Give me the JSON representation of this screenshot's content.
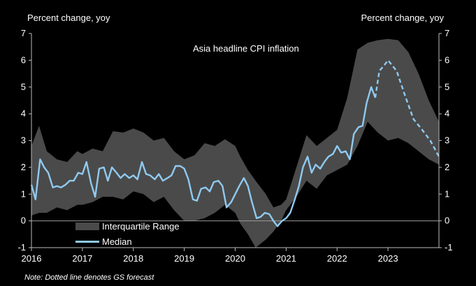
{
  "chart_data": {
    "type": "line",
    "title": "Asia headline CPI inflation",
    "ylabel_left": "Percent change, yoy",
    "ylabel_right": "Percent change, yoy",
    "ylim": [
      -1,
      7
    ],
    "yticks": [
      -1,
      0,
      1,
      2,
      3,
      4,
      5,
      6,
      7
    ],
    "xlim": [
      2016.0,
      2024.0
    ],
    "xticks": [
      {
        "value": 2016,
        "label": "2016"
      },
      {
        "value": 2017,
        "label": "2017"
      },
      {
        "value": 2018,
        "label": "2018"
      },
      {
        "value": 2019,
        "label": "2019"
      },
      {
        "value": 2020,
        "label": "2020"
      },
      {
        "value": 2021,
        "label": "2021"
      },
      {
        "value": 2022,
        "label": "2022"
      },
      {
        "value": 2023,
        "label": "2023"
      }
    ],
    "note": "Note: Dotted line denotes GS forecast",
    "series": [
      {
        "name": "Interquartile Range",
        "kind": "band",
        "color": "#4a4a4a",
        "x": [
          2016.0,
          2016.15,
          2016.3,
          2016.5,
          2016.7,
          2016.9,
          2017.0,
          2017.2,
          2017.4,
          2017.6,
          2017.8,
          2018.0,
          2018.2,
          2018.4,
          2018.6,
          2018.8,
          2019.0,
          2019.2,
          2019.4,
          2019.6,
          2019.8,
          2020.0,
          2020.1,
          2020.25,
          2020.4,
          2020.6,
          2020.75,
          2020.9,
          2021.0,
          2021.2,
          2021.4,
          2021.6,
          2021.8,
          2022.0,
          2022.2,
          2022.4,
          2022.6,
          2022.8,
          2023.0,
          2023.2,
          2023.4,
          2023.6,
          2023.8,
          2024.0
        ],
        "upper": [
          2.8,
          3.55,
          2.6,
          2.3,
          2.2,
          2.6,
          2.5,
          2.7,
          2.6,
          3.35,
          3.3,
          3.45,
          3.3,
          3.0,
          3.1,
          2.6,
          2.3,
          2.45,
          2.9,
          2.8,
          3.05,
          2.8,
          2.4,
          1.9,
          1.5,
          1.0,
          0.5,
          0.6,
          0.8,
          2.0,
          3.2,
          2.8,
          3.1,
          3.4,
          4.6,
          6.4,
          6.65,
          6.75,
          6.8,
          6.75,
          6.3,
          5.5,
          4.5,
          3.7
        ],
        "lower": [
          0.2,
          0.3,
          0.3,
          0.5,
          0.4,
          0.6,
          0.6,
          0.7,
          0.9,
          0.9,
          0.8,
          1.1,
          1.0,
          0.7,
          0.9,
          0.4,
          0.0,
          0.0,
          0.1,
          0.3,
          0.6,
          0.3,
          -0.1,
          -0.5,
          -1.0,
          -0.7,
          -0.4,
          0.0,
          0.4,
          0.9,
          1.5,
          1.2,
          1.7,
          1.9,
          2.1,
          2.8,
          3.7,
          3.3,
          3.0,
          3.1,
          2.9,
          2.6,
          2.3,
          2.1
        ]
      },
      {
        "name": "Median",
        "kind": "line",
        "color": "#8fcaf0",
        "x": [
          2016.0,
          2016.08,
          2016.17,
          2016.25,
          2016.33,
          2016.42,
          2016.5,
          2016.58,
          2016.67,
          2016.75,
          2016.83,
          2016.92,
          2017.0,
          2017.08,
          2017.17,
          2017.25,
          2017.33,
          2017.42,
          2017.5,
          2017.58,
          2017.67,
          2017.75,
          2017.83,
          2017.92,
          2018.0,
          2018.08,
          2018.17,
          2018.25,
          2018.33,
          2018.42,
          2018.5,
          2018.58,
          2018.67,
          2018.75,
          2018.83,
          2018.92,
          2019.0,
          2019.08,
          2019.17,
          2019.25,
          2019.33,
          2019.42,
          2019.5,
          2019.58,
          2019.67,
          2019.75,
          2019.83,
          2019.92,
          2020.0,
          2020.08,
          2020.17,
          2020.25,
          2020.33,
          2020.42,
          2020.5,
          2020.58,
          2020.67,
          2020.75,
          2020.83,
          2020.92,
          2021.0,
          2021.08,
          2021.17,
          2021.25,
          2021.33,
          2021.42,
          2021.5,
          2021.58,
          2021.67,
          2021.75,
          2021.83,
          2021.92,
          2022.0,
          2022.08,
          2022.17,
          2022.25,
          2022.33,
          2022.42,
          2022.5,
          2022.58,
          2022.67,
          2022.75
        ],
        "values": [
          1.35,
          0.8,
          2.3,
          2.0,
          1.8,
          1.25,
          1.3,
          1.25,
          1.35,
          1.5,
          1.5,
          1.8,
          1.75,
          2.2,
          1.4,
          0.9,
          1.95,
          2.0,
          1.5,
          2.0,
          1.8,
          1.6,
          1.75,
          1.6,
          1.7,
          1.55,
          2.2,
          1.75,
          1.7,
          1.55,
          1.75,
          1.5,
          1.6,
          1.7,
          2.05,
          2.05,
          1.95,
          1.55,
          0.8,
          0.75,
          1.2,
          1.25,
          1.1,
          1.45,
          1.5,
          1.3,
          0.5,
          0.7,
          1.0,
          1.3,
          1.6,
          1.3,
          0.7,
          0.1,
          0.15,
          0.3,
          0.25,
          0.0,
          -0.2,
          0.0,
          0.1,
          0.3,
          0.8,
          1.3,
          2.0,
          2.4,
          1.8,
          2.1,
          1.95,
          2.2,
          2.4,
          2.5,
          2.8,
          2.55,
          2.6,
          2.3,
          3.25,
          3.5,
          3.55,
          4.4,
          5.0,
          4.6
        ],
        "forecast_x": [
          2022.75,
          2022.83,
          2022.92,
          2023.0,
          2023.17,
          2023.33,
          2023.5,
          2023.67,
          2023.83,
          2024.0
        ],
        "forecast_values": [
          4.6,
          5.6,
          5.8,
          6.0,
          5.6,
          4.7,
          3.8,
          3.4,
          3.0,
          2.4
        ]
      }
    ],
    "legend": [
      {
        "label": "Interquartile Range"
      },
      {
        "label": "Median"
      }
    ]
  }
}
